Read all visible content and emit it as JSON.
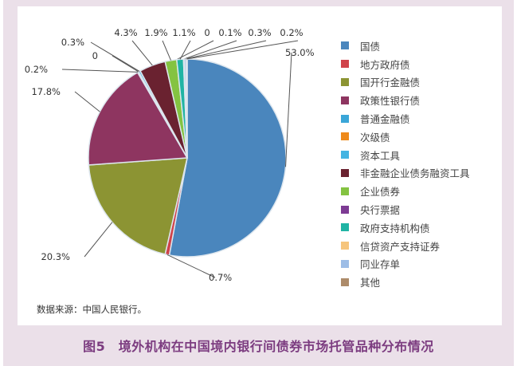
{
  "chart_data": {
    "type": "pie",
    "title": "图5　境外机构在中国境内银行间债券市场托管品种分布情况",
    "source": "数据来源：中国人民银行。",
    "legend_position": "right",
    "start": "12 o'clock, clockwise",
    "slices": [
      {
        "name": "国债",
        "value": 53.0,
        "label": "53.0%",
        "color": "#4a86bd"
      },
      {
        "name": "地方政府债",
        "value": 0.7,
        "label": "0.7%",
        "color": "#d0434b"
      },
      {
        "name": "国开行金融债",
        "value": 20.3,
        "label": "20.3%",
        "color": "#8c9433"
      },
      {
        "name": "政策性银行债",
        "value": 17.8,
        "label": "17.8%",
        "color": "#8e3560"
      },
      {
        "name": "普通金融债",
        "value": 0.2,
        "label": "0.2%",
        "color": "#3aa6d8"
      },
      {
        "name": "次级债",
        "value": 0,
        "label": "0",
        "color": "#ee8a1c"
      },
      {
        "name": "资本工具",
        "value": 0.3,
        "label": "0.3%",
        "color": "#44b4e2"
      },
      {
        "name": "非金融企业债务融资工具",
        "value": 4.3,
        "label": "4.3%",
        "color": "#6a2230"
      },
      {
        "name": "企业债券",
        "value": 1.9,
        "label": "1.9%",
        "color": "#84c341"
      },
      {
        "name": "央行票据",
        "value": 0,
        "label": "0",
        "color": "#7d3b93"
      },
      {
        "name": "政府支持机构债",
        "value": 1.1,
        "label": "1.1%",
        "color": "#20b4a4"
      },
      {
        "name": "信贷资产支持证券",
        "value": 0.1,
        "label": "0.1%",
        "color": "#f6c57c"
      },
      {
        "name": "同业存单",
        "value": 0.3,
        "label": "0.3%",
        "color": "#9dbde6"
      },
      {
        "name": "其他",
        "value": 0.2,
        "label": "0.2%",
        "color": "#ad8b6a"
      }
    ]
  }
}
